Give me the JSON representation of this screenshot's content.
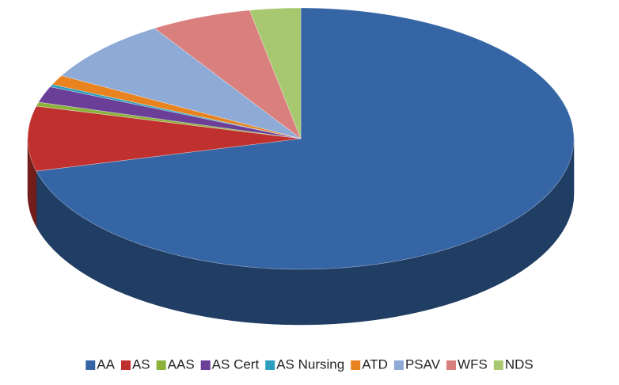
{
  "chart_data": {
    "type": "pie",
    "categories": [
      "AA",
      "AS",
      "AAS",
      "AS Cert",
      "AS Nursing",
      "ATD",
      "PSAV",
      "WFS",
      "NDS"
    ],
    "values": [
      71,
      8,
      0.5,
      2,
      0.3,
      1.2,
      8,
      6,
      3
    ],
    "colors": [
      "#3565a5",
      "#c0302e",
      "#8db23c",
      "#6b3f98",
      "#2c9fbf",
      "#e8831f",
      "#8eaad6",
      "#d9807e",
      "#a8c870"
    ],
    "legend": "bottom"
  }
}
